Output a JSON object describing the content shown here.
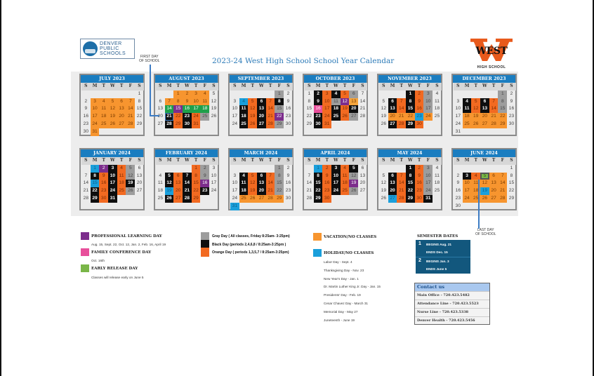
{
  "header": {
    "title": "2023-24 West High School School Year Calendar",
    "dps_logo": [
      "DENVER",
      "PUBLIC",
      "SCHOOLS"
    ],
    "west_logo": {
      "word": "WEST",
      "sub": "HIGH SCHOOL"
    },
    "first_day_label": [
      "FIRST DAY",
      "OF SCHOOL"
    ],
    "last_day_label": [
      "LAST DAY",
      "OF SCHOOL"
    ]
  },
  "colors": {
    "vacation": "#f7952f",
    "orange_day": "#f26a21",
    "black_day": "#0e0e0e",
    "gray_day": "#9d9d9d",
    "holiday": "#1a9fdb",
    "professional_learning": "#7c2d8c",
    "family_conference": "#e84f9b",
    "early_release": "#7ab648",
    "header_blue": "#1a7dc0"
  },
  "weekday_labels": [
    "S",
    "M",
    "T",
    "W",
    "T",
    "F",
    "S"
  ],
  "months": [
    {
      "name": "JULY 2023",
      "start": 6,
      "days": 31,
      "marks": {
        "3": "v",
        "4": "v",
        "5": "v",
        "6": "v",
        "7": "v",
        "10": "v",
        "11": "v",
        "12": "v",
        "13": "v",
        "14": "v",
        "17": "v",
        "18": "v",
        "19": "v",
        "20": "v",
        "21": "v",
        "24": "v",
        "25": "v",
        "26": "v",
        "27": "v",
        "28": "v",
        "31": "v"
      }
    },
    {
      "name": "AUGUST 2023",
      "start": 2,
      "days": 31,
      "marks": {
        "1": "v",
        "2": "v",
        "3": "v",
        "4": "v",
        "7": "v",
        "8": "v",
        "9": "v",
        "10": "v",
        "11": "v",
        "14": "e",
        "15": "p",
        "16": "e",
        "17": "e",
        "18": "e",
        "21": "b",
        "22": "o",
        "23": "b",
        "24": "o",
        "25": "g",
        "28": "b",
        "29": "o",
        "30": "b",
        "31": "o"
      }
    },
    {
      "name": "SEPTEMBER 2023",
      "start": 5,
      "days": 30,
      "marks": {
        "1": "g",
        "4": "h",
        "5": "o",
        "6": "b",
        "7": "o",
        "8": "b",
        "11": "b",
        "12": "o",
        "13": "b",
        "14": "o",
        "15": "g",
        "18": "b",
        "19": "o",
        "20": "b",
        "21": "o",
        "22": "p",
        "25": "b",
        "26": "o",
        "27": "b",
        "28": "o",
        "29": "g"
      }
    },
    {
      "name": "OCTOBER 2023",
      "start": 0,
      "days": 31,
      "marks": {
        "2": "b",
        "3": "o",
        "4": "b",
        "5": "o",
        "6": "g",
        "9": "b",
        "10": "o",
        "11": "g",
        "12": "p",
        "13": "vv",
        "16": "f",
        "17": "o",
        "18": "b",
        "19": "o",
        "20": "b",
        "23": "b",
        "24": "o",
        "25": "b",
        "26": "o",
        "27": "g",
        "30": "b",
        "31": "o"
      }
    },
    {
      "name": "NOVEMBER 2023",
      "start": 3,
      "days": 30,
      "marks": {
        "1": "b",
        "2": "o",
        "3": "g",
        "6": "b",
        "7": "o",
        "8": "b",
        "9": "o",
        "10": "g",
        "13": "b",
        "14": "o",
        "15": "b",
        "16": "o",
        "17": "g",
        "20": "v",
        "21": "v",
        "22": "v",
        "23": "h",
        "24": "v",
        "27": "b",
        "28": "o",
        "29": "b",
        "30": "o"
      }
    },
    {
      "name": "DECEMBER 2023",
      "start": 5,
      "days": 31,
      "marks": {
        "1": "g",
        "4": "b",
        "5": "o",
        "6": "b",
        "7": "o",
        "8": "g",
        "11": "b",
        "12": "o",
        "13": "b",
        "14": "o",
        "15": "g",
        "18": "v",
        "19": "v",
        "20": "v",
        "21": "v",
        "22": "v",
        "25": "v",
        "26": "v",
        "27": "v",
        "28": "v",
        "29": "v"
      }
    },
    {
      "name": "JANUARY 2024",
      "start": 1,
      "days": 31,
      "marks": {
        "1": "h",
        "2": "p",
        "3": "b",
        "4": "o",
        "5": "g",
        "8": "b",
        "9": "o",
        "10": "b",
        "11": "o",
        "12": "g",
        "15": "h",
        "16": "o",
        "17": "b",
        "18": "o",
        "19": "b",
        "22": "b",
        "23": "o",
        "24": "b",
        "25": "o",
        "26": "g",
        "29": "b",
        "30": "o",
        "31": "b"
      }
    },
    {
      "name": "FEBRUARY 2024",
      "start": 4,
      "days": 29,
      "marks": {
        "1": "o",
        "2": "g",
        "5": "b",
        "6": "o",
        "7": "b",
        "8": "o",
        "9": "g",
        "12": "b",
        "13": "o",
        "14": "b",
        "15": "o",
        "16": "p",
        "19": "h",
        "20": "o",
        "21": "b",
        "22": "o",
        "23": "b",
        "26": "b",
        "27": "o",
        "28": "b",
        "29": "o"
      }
    },
    {
      "name": "MARCH 2024",
      "start": 5,
      "days": 31,
      "marks": {
        "1": "g",
        "4": "b",
        "5": "o",
        "6": "b",
        "7": "o",
        "8": "g",
        "11": "b",
        "12": "o",
        "13": "b",
        "14": "o",
        "15": "g",
        "18": "b",
        "19": "o",
        "20": "b",
        "21": "o",
        "22": "g",
        "25": "v",
        "26": "v",
        "27": "v",
        "28": "v",
        "29": "v",
        "31": "h"
      }
    },
    {
      "name": "APRIL 2024",
      "start": 1,
      "days": 30,
      "marks": {
        "1": "h",
        "2": "o",
        "3": "b",
        "4": "o",
        "5": "b",
        "8": "b",
        "9": "o",
        "10": "b",
        "11": "o",
        "12": "g",
        "15": "b",
        "16": "o",
        "17": "b",
        "18": "o",
        "19": "p",
        "22": "b",
        "23": "o",
        "24": "b",
        "25": "o",
        "26": "g",
        "29": "b",
        "30": "o"
      }
    },
    {
      "name": "MAY 2024",
      "start": 3,
      "days": 31,
      "marks": {
        "1": "b",
        "2": "o",
        "3": "g",
        "6": "b",
        "7": "o",
        "8": "b",
        "9": "o",
        "10": "g",
        "13": "b",
        "14": "o",
        "15": "b",
        "16": "o",
        "17": "g",
        "20": "b",
        "21": "o",
        "22": "b",
        "23": "o",
        "24": "g",
        "27": "h",
        "28": "o",
        "29": "b",
        "30": "o",
        "31": "b"
      }
    },
    {
      "name": "JUNE 2024",
      "start": 6,
      "days": 30,
      "marks": {
        "3": "b",
        "4": "o",
        "5": "l",
        "6": "v",
        "7": "v",
        "10": "v",
        "11": "v",
        "12": "v",
        "13": "v",
        "14": "v",
        "17": "v",
        "18": "v",
        "19": "h",
        "20": "v",
        "21": "v",
        "24": "v",
        "25": "v",
        "26": "v",
        "27": "v",
        "28": "v"
      }
    }
  ],
  "legend": {
    "professional_learning": {
      "title": "PROFESSIONAL LEARNING DAY",
      "detail": "Aug. 15, Sept. 22, Oct. 12, Jan. 2, Feb. 16, April 19"
    },
    "family_conference": {
      "title": "FAMILY CONFERENCE DAY",
      "detail": "Oct. 16th"
    },
    "early_release": {
      "title": "EARLY RELEASE DAY",
      "detail": "Classes will release early on June 5"
    },
    "gray_day": "Gray Day ( All classes, Friday 8:25am- 3:25pm)",
    "black_day": "Black Day (periods 2,4,6,8 / 8:25am-3:25pm )",
    "orange_day": "Orange Day ( periods 1,3,5,7 / 8:25am-3:25pm)",
    "vacation": "VACATION/NO CLASSES",
    "holiday": "HOLIDAY/NO CLASSES",
    "holidays": [
      "Labor Day - Sept. 4",
      "Thanksgiving Day - Nov. 23",
      "New Year's Day - Jan. 1",
      "Dr. Martin Luther King Jr. Day - Jan. 15",
      "Presidents' Day - Feb. 19",
      "Cesar Chavez Day - March 31",
      "Memorial Day - May 27",
      "Juneteenth - June 19"
    ]
  },
  "semesters": {
    "title": "SEMESTER DATES",
    "items": [
      {
        "num": "1",
        "begins": "BEGINS Aug. 21",
        "ends": "ENDS Dec. 15"
      },
      {
        "num": "2",
        "begins": "BEGINS Jan. 3",
        "ends": "ENDS June 5"
      }
    ]
  },
  "contact": {
    "title": "Contact us",
    "rows": [
      "Main Office - 720.423.5482",
      "Attendance Line - 720.423.5523",
      "Nurse Line - 720.423.5338",
      "Denver Health - 720.423.5456"
    ]
  }
}
